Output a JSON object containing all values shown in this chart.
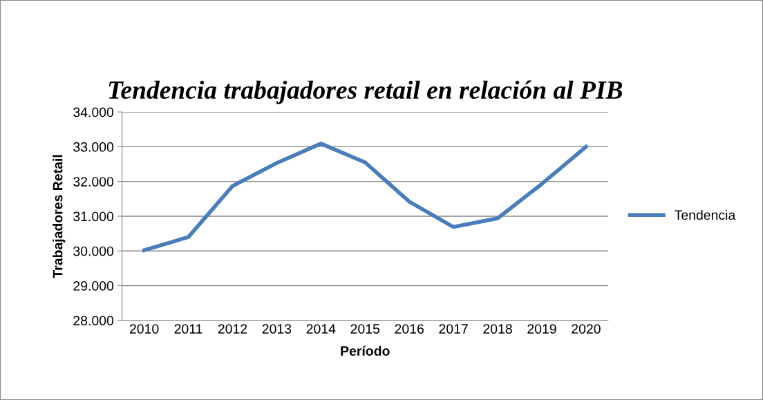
{
  "chart_data": {
    "type": "line",
    "title": "Tendencia trabajadores retail en relación al PIB",
    "xlabel": "Período",
    "ylabel": "Trabajadores Retail",
    "categories": [
      "2010",
      "2011",
      "2012",
      "2013",
      "2014",
      "2015",
      "2016",
      "2017",
      "2018",
      "2019",
      "2020"
    ],
    "series": [
      {
        "name": "Tendencia",
        "color": "#4a7ebb",
        "values": [
          30020,
          30400,
          31870,
          32530,
          33090,
          32550,
          31420,
          30690,
          30940,
          31930,
          33000
        ]
      }
    ],
    "ylim": [
      28000,
      34000
    ],
    "yticks": [
      {
        "value": 28000,
        "label": "28.000"
      },
      {
        "value": 29000,
        "label": "29.000"
      },
      {
        "value": 30000,
        "label": "30.000"
      },
      {
        "value": 31000,
        "label": "31.000"
      },
      {
        "value": 32000,
        "label": "32.000"
      },
      {
        "value": 33000,
        "label": "33.000"
      },
      {
        "value": 34000,
        "label": "34.000"
      }
    ],
    "grid": "y",
    "legend": "right",
    "marker": "none",
    "line_style": "solid"
  }
}
